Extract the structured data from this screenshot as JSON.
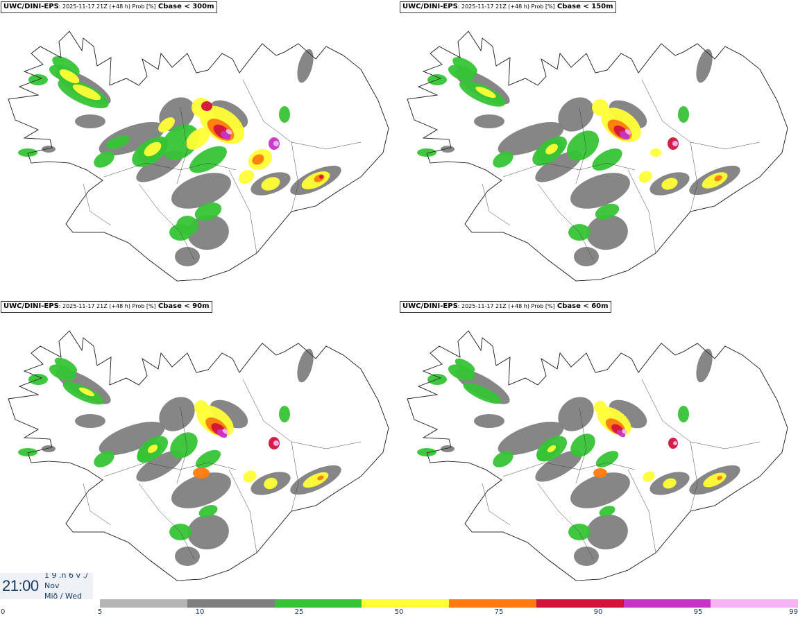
{
  "panels": [
    {
      "source": "UWC/DINI-EPS",
      "info": ": 2025-11-17 21Z (+48 h) Prob [%]",
      "variable": "Cbase < 300m"
    },
    {
      "source": "UWC/DINI-EPS",
      "info": ": 2025-11-17 21Z (+48 h) Prob [%]",
      "variable": "Cbase < 150m"
    },
    {
      "source": "UWC/DINI-EPS",
      "info": ": 2025-11-17 21Z (+48 h) Prob [%]",
      "variable": "Cbase < 90m"
    },
    {
      "source": "UWC/DINI-EPS",
      "info": ": 2025-11-17 21Z (+48 h) Prob [%]",
      "variable": "Cbase < 60m"
    }
  ],
  "valid_time": {
    "time": "21:00",
    "date_line": "1 9 .n 6 v ./",
    "month": "Nov",
    "weekday": "Mið / Wed"
  },
  "colorbar": {
    "ticks": [
      "0",
      "5",
      "10",
      "25",
      "50",
      "75",
      "90",
      "95",
      "99"
    ],
    "colors": [
      "#b4b4b4",
      "#7f7f7f",
      "#36c436",
      "#ffff36",
      "#ff7a0e",
      "#d3123c",
      "#c634c6",
      "#f5b4f3"
    ],
    "no_data_color": "#ffffff"
  }
}
